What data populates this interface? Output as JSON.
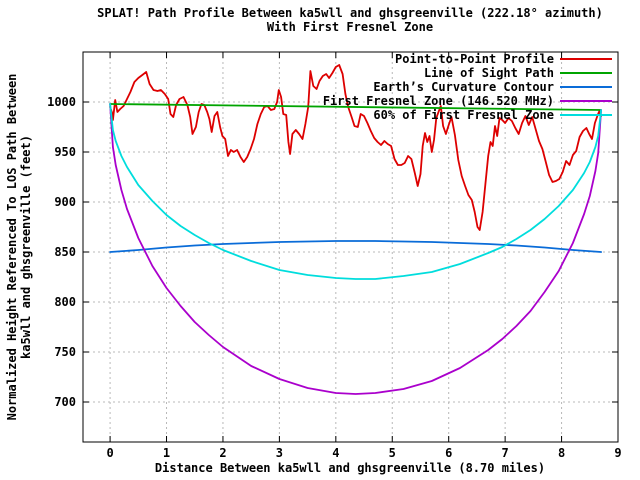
{
  "title": {
    "line1": "SPLAT! Path Profile Between ka5wll and ghsgreenville (222.18° azimuth)",
    "line2": "With First Fresnel Zone"
  },
  "axes": {
    "x": {
      "label": "Distance Between ka5wll and ghsgreenville (8.70 miles)",
      "ticks": [
        0,
        1,
        2,
        3,
        4,
        5,
        6,
        7,
        8,
        9
      ],
      "range": [
        -0.48,
        9.0
      ]
    },
    "y": {
      "label_line1": "Normalized Height Referenced To LOS Path Between",
      "label_line2": "ka5wll and ghsgreenville (feet)",
      "ticks": [
        700,
        750,
        800,
        850,
        900,
        950,
        1000
      ],
      "range": [
        660,
        1050
      ]
    }
  },
  "colors": {
    "background": "#ffffff",
    "border": "#000000",
    "grid": "#b8b8b8",
    "text": "#000000",
    "profile_red": "#dd0000",
    "los_green": "#00a400",
    "earth_blue": "#0a6cd8",
    "fresnel_magenta": "#aa00cc",
    "fresnel60_cyan": "#00dddd"
  },
  "legend": {
    "position": "top-right-inside"
  },
  "chart_data": {
    "type": "line",
    "title": "SPLAT! Path Profile Between ka5wll and ghsgreenville (222.18° azimuth) With First Fresnel Zone",
    "xlabel": "Distance Between ka5wll and ghsgreenville (8.70 miles)",
    "ylabel": "Normalized Height Referenced To LOS Path Between ka5wll and ghsgreenville (feet)",
    "xlim": [
      -0.48,
      9.0
    ],
    "ylim": [
      660,
      1050
    ],
    "grid": true,
    "legend_position": "top right inside",
    "series": [
      {
        "name": "Point-to-Point Profile",
        "color": "#dd0000",
        "points": [
          [
            0,
            995
          ],
          [
            0.03,
            990
          ],
          [
            0.05,
            982
          ],
          [
            0.09,
            1002
          ],
          [
            0.13,
            990
          ],
          [
            0.18,
            993
          ],
          [
            0.24,
            996
          ],
          [
            0.3,
            1003
          ],
          [
            0.36,
            1010
          ],
          [
            0.43,
            1020
          ],
          [
            0.5,
            1024
          ],
          [
            0.57,
            1027
          ],
          [
            0.64,
            1030
          ],
          [
            0.7,
            1018
          ],
          [
            0.77,
            1012
          ],
          [
            0.84,
            1011
          ],
          [
            0.9,
            1012
          ],
          [
            0.97,
            1008
          ],
          [
            1.03,
            1003
          ],
          [
            1.07,
            988
          ],
          [
            1.12,
            985
          ],
          [
            1.17,
            997
          ],
          [
            1.23,
            1003
          ],
          [
            1.3,
            1005
          ],
          [
            1.37,
            997
          ],
          [
            1.42,
            985
          ],
          [
            1.46,
            968
          ],
          [
            1.52,
            975
          ],
          [
            1.57,
            990
          ],
          [
            1.62,
            998
          ],
          [
            1.67,
            997
          ],
          [
            1.72,
            990
          ],
          [
            1.76,
            983
          ],
          [
            1.8,
            970
          ],
          [
            1.85,
            986
          ],
          [
            1.9,
            990
          ],
          [
            1.95,
            975
          ],
          [
            1.99,
            966
          ],
          [
            2.04,
            963
          ],
          [
            2.09,
            946
          ],
          [
            2.14,
            952
          ],
          [
            2.19,
            950
          ],
          [
            2.25,
            952
          ],
          [
            2.31,
            945
          ],
          [
            2.37,
            940
          ],
          [
            2.43,
            945
          ],
          [
            2.49,
            953
          ],
          [
            2.55,
            963
          ],
          [
            2.61,
            978
          ],
          [
            2.67,
            988
          ],
          [
            2.73,
            995
          ],
          [
            2.79,
            996
          ],
          [
            2.85,
            992
          ],
          [
            2.91,
            993
          ],
          [
            2.96,
            1000
          ],
          [
            2.99,
            1012
          ],
          [
            3.03,
            1005
          ],
          [
            3.07,
            988
          ],
          [
            3.12,
            987
          ],
          [
            3.16,
            960
          ],
          [
            3.19,
            948
          ],
          [
            3.23,
            968
          ],
          [
            3.29,
            972
          ],
          [
            3.35,
            968
          ],
          [
            3.41,
            963
          ],
          [
            3.46,
            978
          ],
          [
            3.51,
            995
          ],
          [
            3.55,
            1031
          ],
          [
            3.6,
            1016
          ],
          [
            3.66,
            1013
          ],
          [
            3.71,
            1021
          ],
          [
            3.77,
            1026
          ],
          [
            3.83,
            1028
          ],
          [
            3.88,
            1024
          ],
          [
            3.94,
            1029
          ],
          [
            4,
            1035
          ],
          [
            4.06,
            1037
          ],
          [
            4.12,
            1028
          ],
          [
            4.17,
            1008
          ],
          [
            4.22,
            995
          ],
          [
            4.28,
            985
          ],
          [
            4.33,
            976
          ],
          [
            4.39,
            975
          ],
          [
            4.44,
            988
          ],
          [
            4.5,
            986
          ],
          [
            4.56,
            979
          ],
          [
            4.62,
            971
          ],
          [
            4.68,
            964
          ],
          [
            4.74,
            960
          ],
          [
            4.8,
            957
          ],
          [
            4.86,
            961
          ],
          [
            4.92,
            958
          ],
          [
            4.98,
            956
          ],
          [
            5.04,
            943
          ],
          [
            5.1,
            937
          ],
          [
            5.16,
            937
          ],
          [
            5.22,
            939
          ],
          [
            5.28,
            946
          ],
          [
            5.34,
            943
          ],
          [
            5.4,
            929
          ],
          [
            5.45,
            916
          ],
          [
            5.5,
            928
          ],
          [
            5.54,
            956
          ],
          [
            5.58,
            969
          ],
          [
            5.62,
            960
          ],
          [
            5.66,
            966
          ],
          [
            5.7,
            950
          ],
          [
            5.74,
            962
          ],
          [
            5.78,
            984
          ],
          [
            5.82,
            990
          ],
          [
            5.86,
            996
          ],
          [
            5.9,
            976
          ],
          [
            5.95,
            968
          ],
          [
            6,
            977
          ],
          [
            6.05,
            985
          ],
          [
            6.11,
            967
          ],
          [
            6.17,
            942
          ],
          [
            6.23,
            926
          ],
          [
            6.29,
            916
          ],
          [
            6.35,
            907
          ],
          [
            6.41,
            902
          ],
          [
            6.46,
            890
          ],
          [
            6.51,
            875
          ],
          [
            6.55,
            872
          ],
          [
            6.6,
            890
          ],
          [
            6.65,
            918
          ],
          [
            6.7,
            946
          ],
          [
            6.74,
            960
          ],
          [
            6.78,
            956
          ],
          [
            6.82,
            976
          ],
          [
            6.86,
            966
          ],
          [
            6.9,
            984
          ],
          [
            6.95,
            982
          ],
          [
            7,
            979
          ],
          [
            7.06,
            984
          ],
          [
            7.12,
            981
          ],
          [
            7.18,
            974
          ],
          [
            7.24,
            968
          ],
          [
            7.3,
            979
          ],
          [
            7.36,
            986
          ],
          [
            7.42,
            977
          ],
          [
            7.48,
            985
          ],
          [
            7.54,
            973
          ],
          [
            7.6,
            961
          ],
          [
            7.66,
            953
          ],
          [
            7.72,
            940
          ],
          [
            7.78,
            927
          ],
          [
            7.84,
            920
          ],
          [
            7.9,
            921
          ],
          [
            7.96,
            923
          ],
          [
            8.02,
            930
          ],
          [
            8.08,
            941
          ],
          [
            8.14,
            937
          ],
          [
            8.2,
            947
          ],
          [
            8.26,
            951
          ],
          [
            8.32,
            965
          ],
          [
            8.38,
            971
          ],
          [
            8.44,
            974
          ],
          [
            8.49,
            968
          ],
          [
            8.54,
            963
          ],
          [
            8.59,
            979
          ],
          [
            8.64,
            987
          ],
          [
            8.67,
            991
          ],
          [
            8.7,
            986
          ]
        ]
      },
      {
        "name": "Line of Sight Path",
        "color": "#00a400",
        "points": [
          [
            0,
            998
          ],
          [
            8.7,
            992
          ]
        ]
      },
      {
        "name": "Earth’s Curvature Contour",
        "color": "#0a6cd8",
        "points": [
          [
            0,
            850
          ],
          [
            0.5,
            852
          ],
          [
            1,
            854.5
          ],
          [
            1.5,
            856.5
          ],
          [
            2,
            858
          ],
          [
            2.5,
            859
          ],
          [
            3,
            860
          ],
          [
            3.5,
            860.5
          ],
          [
            4,
            861
          ],
          [
            4.35,
            861
          ],
          [
            4.7,
            861
          ],
          [
            5.2,
            860.5
          ],
          [
            5.7,
            860
          ],
          [
            6.2,
            859
          ],
          [
            6.7,
            858
          ],
          [
            7.2,
            856.5
          ],
          [
            7.7,
            854.5
          ],
          [
            8.2,
            852
          ],
          [
            8.7,
            850
          ]
        ]
      },
      {
        "name": "First Fresnel Zone (146.520 MHz)",
        "color": "#aa00cc",
        "points": [
          [
            0,
            998
          ],
          [
            0.05,
            955
          ],
          [
            0.1,
            937
          ],
          [
            0.2,
            912
          ],
          [
            0.3,
            893
          ],
          [
            0.5,
            864
          ],
          [
            0.75,
            836
          ],
          [
            1,
            814
          ],
          [
            1.25,
            796
          ],
          [
            1.5,
            780
          ],
          [
            1.75,
            767
          ],
          [
            2,
            755
          ],
          [
            2.5,
            736
          ],
          [
            3,
            723
          ],
          [
            3.5,
            714
          ],
          [
            4,
            709
          ],
          [
            4.35,
            708
          ],
          [
            4.7,
            709
          ],
          [
            5.2,
            713
          ],
          [
            5.7,
            721
          ],
          [
            6.2,
            734
          ],
          [
            6.7,
            752
          ],
          [
            6.95,
            763
          ],
          [
            7.2,
            776
          ],
          [
            7.45,
            791
          ],
          [
            7.7,
            810
          ],
          [
            7.95,
            831
          ],
          [
            8.2,
            859
          ],
          [
            8.4,
            888
          ],
          [
            8.5,
            906
          ],
          [
            8.6,
            931
          ],
          [
            8.65,
            949
          ],
          [
            8.7,
            992
          ]
        ]
      },
      {
        "name": "60% of First Fresnel Zone",
        "color": "#00dddd",
        "points": [
          [
            0,
            998
          ],
          [
            0.05,
            972
          ],
          [
            0.1,
            961
          ],
          [
            0.2,
            946
          ],
          [
            0.3,
            935
          ],
          [
            0.5,
            917
          ],
          [
            0.75,
            901
          ],
          [
            1,
            887
          ],
          [
            1.25,
            876
          ],
          [
            1.5,
            867
          ],
          [
            1.75,
            859
          ],
          [
            2,
            852
          ],
          [
            2.5,
            841
          ],
          [
            3,
            832
          ],
          [
            3.5,
            827
          ],
          [
            4,
            824
          ],
          [
            4.35,
            823
          ],
          [
            4.7,
            823
          ],
          [
            5.2,
            826
          ],
          [
            5.7,
            830
          ],
          [
            6.2,
            838
          ],
          [
            6.7,
            849
          ],
          [
            6.95,
            855
          ],
          [
            7.2,
            863
          ],
          [
            7.45,
            872
          ],
          [
            7.7,
            883
          ],
          [
            7.95,
            896
          ],
          [
            8.2,
            912
          ],
          [
            8.4,
            929
          ],
          [
            8.5,
            940
          ],
          [
            8.6,
            955
          ],
          [
            8.65,
            966
          ],
          [
            8.7,
            992
          ]
        ]
      }
    ]
  }
}
